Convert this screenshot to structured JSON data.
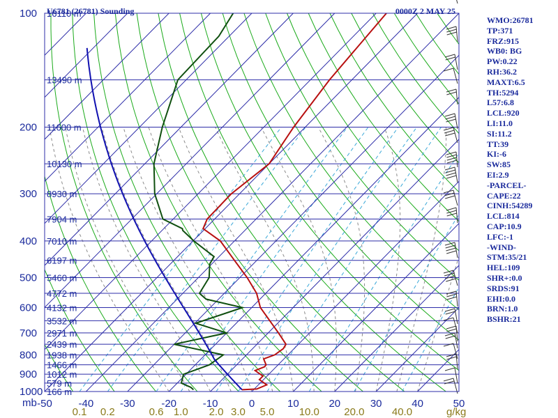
{
  "header": {
    "station": "U6781 (26781) Sounding",
    "time": "0000Z  2 MAY 25"
  },
  "colors": {
    "isobar": "#2c2ca8",
    "isotherm": "#2c2ca8",
    "dry_adiabat": "#1aaa1a",
    "moist_adiabat": "#8a8a8a",
    "mixing_ratio": "#3aa8d8",
    "temperature": "#b81010",
    "dewpoint": "#0f4f0f",
    "parcel": "#1010b0",
    "text": "#1a2a9c",
    "mixing_text": "#8a7a1a",
    "wind": "#333333"
  },
  "indices": [
    "WMO:26781",
    "TP:371",
    "FRZ:915",
    "WB0: BG",
    "PW:0.22",
    "RH:36.2",
    "MAXT:6.5",
    "TH:5294",
    "L57:6.8",
    "LCL:920",
    "LI:11.0",
    "SI:11.2",
    "TT:39",
    "KI:-6",
    "SW:85",
    "EI:2.9",
    "-PARCEL-",
    "CAPE:22",
    "CINH:54289",
    "LCL:814",
    "CAP:10.9",
    "LFC:-1",
    "-WIND-",
    "STM:35/21",
    "HEL:109",
    "SHR+:0.0",
    "SRDS:91",
    "EHI:0.0",
    "BRN:1.0",
    "BSHR:21"
  ],
  "chart_data": {
    "type": "line",
    "title": "U6781 (26781) Sounding",
    "valid_time": "0000Z  2 MAY 25",
    "xlabel": "",
    "ylabel": "mb",
    "y_scale": "log-pressure",
    "ylim": [
      1000,
      100
    ],
    "xlim": [
      -50,
      50
    ],
    "skew_c_per_decade": 90,
    "pressure_ticks": [
      100,
      200,
      300,
      400,
      500,
      600,
      700,
      800,
      900,
      1000
    ],
    "height_labels": [
      {
        "p": 100,
        "label": "16110 m"
      },
      {
        "p": 150,
        "label": "13490 m"
      },
      {
        "p": 200,
        "label": "11600 m"
      },
      {
        "p": 250,
        "label": "10130 m"
      },
      {
        "p": 300,
        "label": "8930 m"
      },
      {
        "p": 350,
        "label": "7904 m"
      },
      {
        "p": 400,
        "label": "7010 m"
      },
      {
        "p": 450,
        "label": "6197 m"
      },
      {
        "p": 500,
        "label": "5460 m"
      },
      {
        "p": 550,
        "label": "4772 m"
      },
      {
        "p": 600,
        "label": "4132 m"
      },
      {
        "p": 650,
        "label": "3532 m"
      },
      {
        "p": 700,
        "label": "2971 m"
      },
      {
        "p": 750,
        "label": "2439 m"
      },
      {
        "p": 800,
        "label": "1938 m"
      },
      {
        "p": 850,
        "label": "1466 m"
      },
      {
        "p": 900,
        "label": "1012 m"
      },
      {
        "p": 950,
        "label": "579 m"
      },
      {
        "p": 1000,
        "label": "166 m"
      }
    ],
    "temp_ticks": [
      "-50",
      "-40",
      "-30",
      "-20",
      "-10",
      "0",
      "10",
      "20",
      "30",
      "40",
      "50"
    ],
    "mixing_ticks": [
      {
        "w": 0.1,
        "label": "0.1"
      },
      {
        "w": 0.2,
        "label": "0.2"
      },
      {
        "w": 0.6,
        "label": "0.6"
      },
      {
        "w": 1.0,
        "label": "1.0"
      },
      {
        "w": 2.0,
        "label": "2.0"
      },
      {
        "w": 3.0,
        "label": "3.0"
      },
      {
        "w": 5.0,
        "label": "5.0"
      },
      {
        "w": 10.0,
        "label": "10.0"
      },
      {
        "w": 20.0,
        "label": "20.0"
      },
      {
        "w": 40.0,
        "label": "40.0"
      }
    ],
    "mixing_unit": "g/kg",
    "series": [
      {
        "key": "temperature",
        "points": [
          [
            989,
            -2.8
          ],
          [
            985,
            0.6
          ],
          [
            960,
            2.0
          ],
          [
            930,
            -1.0
          ],
          [
            910,
            -1.0
          ],
          [
            880,
            -4.2
          ],
          [
            860,
            -2.8
          ],
          [
            850,
            -2.9
          ],
          [
            820,
            -4.9
          ],
          [
            800,
            -3.2
          ],
          [
            770,
            -2.6
          ],
          [
            750,
            -3.0
          ],
          [
            700,
            -7.5
          ],
          [
            650,
            -12.5
          ],
          [
            600,
            -17.9
          ],
          [
            550,
            -22.2
          ],
          [
            500,
            -28.2
          ],
          [
            450,
            -35.4
          ],
          [
            400,
            -43.4
          ],
          [
            371,
            -50.5
          ],
          [
            350,
            -51.8
          ],
          [
            300,
            -52.0
          ],
          [
            250,
            -50.0
          ],
          [
            200,
            -52.8
          ],
          [
            150,
            -55.4
          ],
          [
            100,
            -57.5
          ]
        ]
      },
      {
        "key": "dewpoint",
        "points": [
          [
            989,
            -14.5
          ],
          [
            975,
            -15.7
          ],
          [
            950,
            -19.0
          ],
          [
            900,
            -20.6
          ],
          [
            850,
            -16.6
          ],
          [
            800,
            -15.6
          ],
          [
            750,
            -30.0
          ],
          [
            700,
            -20.0
          ],
          [
            660,
            -29.8
          ],
          [
            600,
            -22.2
          ],
          [
            570,
            -33.0
          ],
          [
            550,
            -36.0
          ],
          [
            500,
            -37.4
          ],
          [
            460,
            -40.5
          ],
          [
            440,
            -41.2
          ],
          [
            400,
            -49.8
          ],
          [
            375,
            -55.0
          ],
          [
            371,
            -55.5
          ],
          [
            350,
            -62.5
          ],
          [
            300,
            -70.5
          ],
          [
            250,
            -77.8
          ],
          [
            200,
            -84.5
          ],
          [
            150,
            -92.0
          ],
          [
            115,
            -92.5
          ],
          [
            100,
            -94.5
          ]
        ]
      }
    ]
  }
}
